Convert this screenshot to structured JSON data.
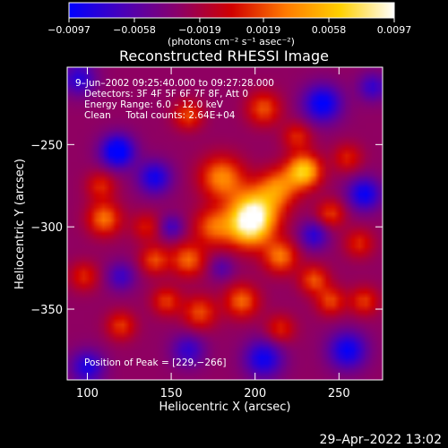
{
  "chart_data": {
    "type": "heatmap",
    "title": "Reconstructed RHESSI Image",
    "xlabel": "Heliocentric X (arcsec)",
    "ylabel": "Heliocentric Y (arcsec)",
    "xlim": [
      88,
      276
    ],
    "ylim": [
      -393,
      -203
    ],
    "x_ticks": [
      100,
      150,
      200,
      250
    ],
    "x_tick_labels": [
      "100",
      "150",
      "200",
      "250"
    ],
    "y_ticks": [
      -250,
      -300,
      -350
    ],
    "y_tick_labels": [
      "−250",
      "−300",
      "−350"
    ],
    "colorbar": {
      "min": -0.0097,
      "max": 0.0097,
      "ticks": [
        -0.0097,
        -0.0058,
        -0.0019,
        0.0019,
        0.0058,
        0.0097
      ],
      "tick_labels": [
        "−0.0097",
        "−0.0058",
        "−0.0019",
        "0.0019",
        "0.0058",
        "0.0097"
      ],
      "units_label": "(photons cm⁻² s⁻¹ asec⁻²)",
      "colors": [
        "#0000ff",
        "#4a00b8",
        "#8a006a",
        "#d10000",
        "#ff7a00",
        "#ffd000",
        "#ffffff"
      ]
    },
    "annotations": {
      "time_range": "9–Jun–2002 09:25:40.000 to 09:27:28.000",
      "detectors": "Detectors: 3F 4F 5F 6F 7F 8F, Att 0",
      "energy": "Energy Range: 6.0 – 12.0 keV",
      "clean": "Clean     Total counts: 2.64E+04",
      "peak": "Position of Peak = [229,−266]"
    },
    "peak": {
      "x": 229,
      "y": -266
    },
    "blobs": [
      {
        "x": 229,
        "y": -266,
        "amp": 0.0097,
        "s": 7
      },
      {
        "x": 200,
        "y": -290,
        "amp": 0.0092,
        "s": 10
      },
      {
        "x": 196,
        "y": -300,
        "amp": 0.0086,
        "s": 9
      },
      {
        "x": 214,
        "y": -276,
        "amp": 0.006,
        "s": 8
      },
      {
        "x": 180,
        "y": -270,
        "amp": 0.0068,
        "s": 9
      },
      {
        "x": 175,
        "y": -300,
        "amp": 0.0055,
        "s": 8
      },
      {
        "x": 160,
        "y": -320,
        "amp": 0.0058,
        "s": 7
      },
      {
        "x": 140,
        "y": -320,
        "amp": 0.005,
        "s": 6
      },
      {
        "x": 215,
        "y": -318,
        "amp": 0.0062,
        "s": 7
      },
      {
        "x": 235,
        "y": -332,
        "amp": 0.0052,
        "s": 6
      },
      {
        "x": 245,
        "y": -345,
        "amp": 0.0048,
        "s": 6
      },
      {
        "x": 265,
        "y": -345,
        "amp": 0.0045,
        "s": 6
      },
      {
        "x": 192,
        "y": -345,
        "amp": 0.0058,
        "s": 7
      },
      {
        "x": 167,
        "y": -352,
        "amp": 0.005,
        "s": 7
      },
      {
        "x": 147,
        "y": -345,
        "amp": 0.0045,
        "s": 6
      },
      {
        "x": 110,
        "y": -295,
        "amp": 0.0062,
        "s": 7
      },
      {
        "x": 108,
        "y": -275,
        "amp": 0.004,
        "s": 6
      },
      {
        "x": 160,
        "y": -232,
        "amp": 0.005,
        "s": 6
      },
      {
        "x": 205,
        "y": -228,
        "amp": 0.0052,
        "s": 7
      },
      {
        "x": 245,
        "y": -292,
        "amp": 0.0045,
        "s": 6
      },
      {
        "x": 255,
        "y": -258,
        "amp": 0.0038,
        "s": 6
      },
      {
        "x": 120,
        "y": -360,
        "amp": 0.0045,
        "s": 6
      },
      {
        "x": 215,
        "y": -362,
        "amp": 0.004,
        "s": 6
      },
      {
        "x": 262,
        "y": -310,
        "amp": 0.004,
        "s": 6
      },
      {
        "x": 98,
        "y": -330,
        "amp": 0.004,
        "s": 6
      },
      {
        "x": 135,
        "y": -300,
        "amp": 0.0035,
        "s": 6
      },
      {
        "x": 225,
        "y": -245,
        "amp": 0.004,
        "s": 6
      },
      {
        "x": 118,
        "y": -254,
        "amp": -0.0082,
        "s": 7
      },
      {
        "x": 240,
        "y": -225,
        "amp": -0.007,
        "s": 8
      },
      {
        "x": 265,
        "y": -280,
        "amp": -0.0065,
        "s": 7
      },
      {
        "x": 140,
        "y": -270,
        "amp": -0.006,
        "s": 7
      },
      {
        "x": 100,
        "y": -385,
        "amp": -0.0055,
        "s": 7
      },
      {
        "x": 205,
        "y": -380,
        "amp": -0.0062,
        "s": 8
      },
      {
        "x": 255,
        "y": -375,
        "amp": -0.0065,
        "s": 8
      },
      {
        "x": 160,
        "y": -375,
        "amp": -0.0045,
        "s": 7
      },
      {
        "x": 95,
        "y": -210,
        "amp": -0.005,
        "s": 7
      },
      {
        "x": 235,
        "y": -305,
        "amp": -0.005,
        "s": 6
      },
      {
        "x": 150,
        "y": -300,
        "amp": -0.004,
        "s": 5
      },
      {
        "x": 120,
        "y": -330,
        "amp": -0.0042,
        "s": 6
      },
      {
        "x": 180,
        "y": -325,
        "amp": -0.003,
        "s": 5
      },
      {
        "x": 270,
        "y": -215,
        "amp": -0.0045,
        "s": 6
      }
    ]
  },
  "footer": {
    "timestamp": "29–Apr–2022 13:02"
  }
}
